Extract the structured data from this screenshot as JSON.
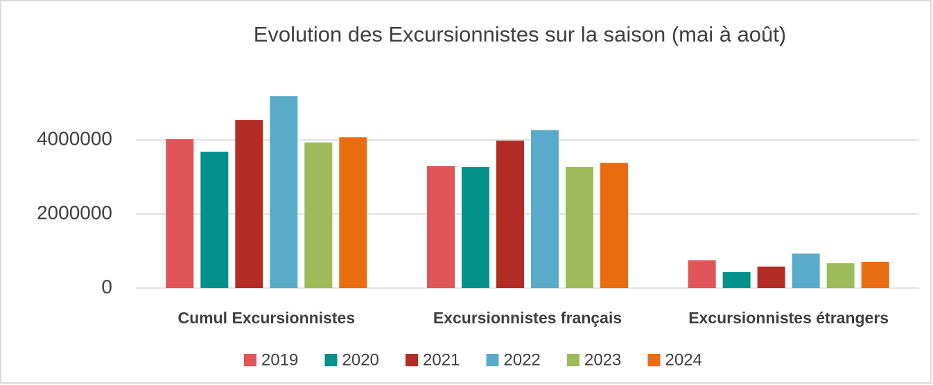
{
  "chart_data": {
    "type": "bar",
    "title": "Evolution des Excursionnistes sur la saison (mai à août)",
    "categories": [
      "Cumul Excursionnistes",
      "Excursionnistes français",
      "Excursionnistes étrangers"
    ],
    "series": [
      {
        "name": "2019",
        "color": "#e05558",
        "values": [
          4020000,
          3290000,
          750000
        ]
      },
      {
        "name": "2020",
        "color": "#00918a",
        "values": [
          3680000,
          3270000,
          430000
        ]
      },
      {
        "name": "2021",
        "color": "#b22b25",
        "values": [
          4540000,
          3980000,
          580000
        ]
      },
      {
        "name": "2022",
        "color": "#5aabc9",
        "values": [
          5180000,
          4260000,
          930000
        ]
      },
      {
        "name": "2023",
        "color": "#9cbb59",
        "values": [
          3930000,
          3270000,
          670000
        ]
      },
      {
        "name": "2024",
        "color": "#e96c10",
        "values": [
          4070000,
          3380000,
          710000
        ]
      }
    ],
    "ylim": [
      0,
      6000000
    ],
    "yticks": [
      0,
      2000000,
      4000000
    ],
    "grid": true,
    "legend": "bottom"
  }
}
